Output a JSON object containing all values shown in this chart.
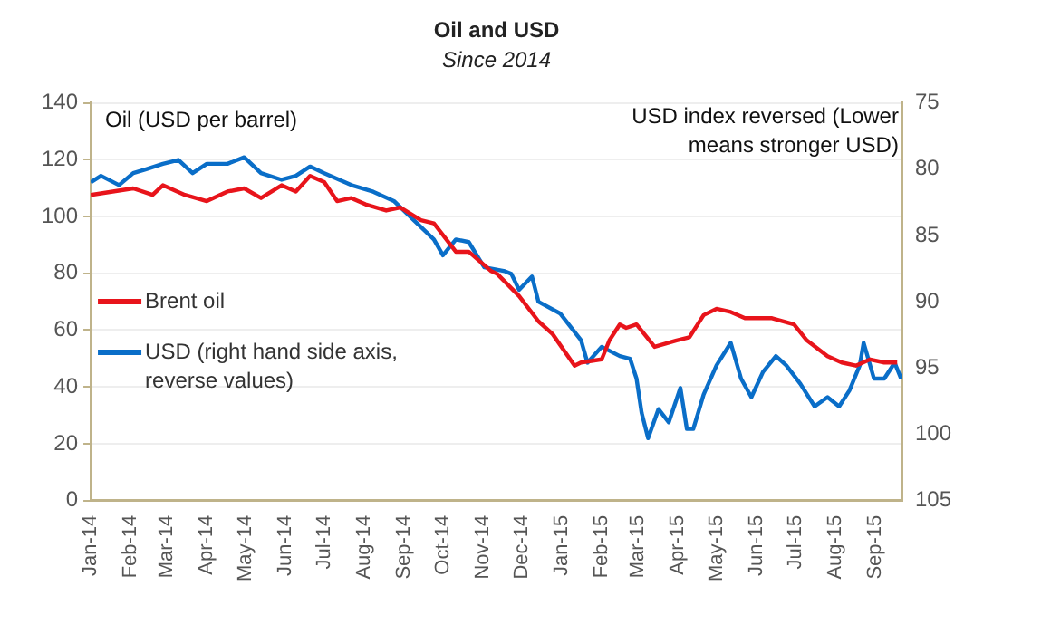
{
  "chart_data": {
    "type": "line",
    "title": "Oil and USD",
    "subtitle": "Since 2014",
    "ylabel": "Oil (USD per barrel)",
    "y2label": "USD index reversed (Lower means stronger USD)",
    "xlim": [
      "2014-01-01",
      "2015-09-22"
    ],
    "xticks": [
      {
        "value": "2014-01",
        "label": "Jan-14"
      },
      {
        "value": "2014-02",
        "label": "Feb-14"
      },
      {
        "value": "2014-03",
        "label": "Mar-14"
      },
      {
        "value": "2014-04",
        "label": "Apr-14"
      },
      {
        "value": "2014-05",
        "label": "May-14"
      },
      {
        "value": "2014-06",
        "label": "Jun-14"
      },
      {
        "value": "2014-07",
        "label": "Jul-14"
      },
      {
        "value": "2014-08",
        "label": "Aug-14"
      },
      {
        "value": "2014-09",
        "label": "Sep-14"
      },
      {
        "value": "2014-10",
        "label": "Oct-14"
      },
      {
        "value": "2014-11",
        "label": "Nov-14"
      },
      {
        "value": "2014-12",
        "label": "Dec-14"
      },
      {
        "value": "2015-01",
        "label": "Jan-15"
      },
      {
        "value": "2015-02",
        "label": "Feb-15"
      },
      {
        "value": "2015-03",
        "label": "Mar-15"
      },
      {
        "value": "2015-04",
        "label": "Apr-15"
      },
      {
        "value": "2015-05",
        "label": "May-15"
      },
      {
        "value": "2015-06",
        "label": "Jun-15"
      },
      {
        "value": "2015-07",
        "label": "Jul-15"
      },
      {
        "value": "2015-08",
        "label": "Aug-15"
      },
      {
        "value": "2015-09",
        "label": "Sep-15"
      }
    ],
    "ylim": [
      0,
      140
    ],
    "yticks": [
      0,
      20,
      40,
      60,
      80,
      100,
      120,
      140
    ],
    "y2lim": [
      105,
      75
    ],
    "y2ticks": [
      75,
      80,
      85,
      90,
      95,
      100,
      105
    ],
    "grid": "y",
    "legend": "left",
    "line_style": "solid",
    "marker": "none",
    "series": [
      {
        "name": "Brent oil",
        "color": "#e8141b",
        "x": [
          "2014-01-01",
          "2014-02-03",
          "2014-02-18",
          "2014-02-26",
          "2014-03-15",
          "2014-04-01",
          "2014-04-17",
          "2014-04-30",
          "2014-05-13",
          "2014-05-29",
          "2014-06-09",
          "2014-06-20",
          "2014-07-01",
          "2014-07-11",
          "2014-07-22",
          "2014-08-02",
          "2014-08-18",
          "2014-08-29",
          "2014-09-14",
          "2014-09-24",
          "2014-10-11",
          "2014-10-21",
          "2014-11-07",
          "2014-11-12",
          "2014-11-29",
          "2014-12-14",
          "2014-12-25",
          "2015-01-11",
          "2015-01-16",
          "2015-02-01",
          "2015-02-07",
          "2015-02-15",
          "2015-02-20",
          "2015-02-28",
          "2015-03-14",
          "2015-03-31",
          "2015-04-10",
          "2015-04-21",
          "2015-05-01",
          "2015-05-12",
          "2015-05-23",
          "2015-06-13",
          "2015-06-30",
          "2015-07-10",
          "2015-07-26",
          "2015-08-06",
          "2015-08-17",
          "2015-08-28",
          "2015-09-08",
          "2015-09-18"
        ],
        "values": [
          107.6,
          109.9,
          107.6,
          111,
          107.6,
          105.4,
          108.8,
          109.9,
          106.5,
          111,
          108.8,
          114.3,
          112.1,
          105.4,
          106.5,
          104.3,
          102.1,
          103.2,
          98.7,
          97.6,
          87.6,
          87.6,
          80.9,
          79.8,
          72,
          63.1,
          58.6,
          47.5,
          48.6,
          49.7,
          56.4,
          62,
          60.8,
          62,
          54.1,
          56.4,
          57.5,
          65.3,
          67.5,
          66.4,
          64.2,
          64.2,
          62,
          56.4,
          50.8,
          48.6,
          47.5,
          49.7,
          48.6,
          48.6
        ]
      },
      {
        "name": "USD (right hand side axis, reverse values)",
        "color": "#0a6ec8",
        "axis": "y2",
        "x": [
          "2014-01-01",
          "2014-01-09",
          "2014-01-23",
          "2014-02-03",
          "2014-02-13",
          "2014-02-26",
          "2014-03-10",
          "2014-03-21",
          "2014-04-01",
          "2014-04-17",
          "2014-04-30",
          "2014-05-13",
          "2014-05-29",
          "2014-06-09",
          "2014-06-20",
          "2014-07-01",
          "2014-07-22",
          "2014-08-08",
          "2014-08-24",
          "2014-09-09",
          "2014-09-24",
          "2014-10-01",
          "2014-10-11",
          "2014-10-21",
          "2014-11-02",
          "2014-11-18",
          "2014-11-23",
          "2014-11-29",
          "2014-12-09",
          "2014-12-14",
          "2014-12-31",
          "2015-01-16",
          "2015-01-21",
          "2015-02-01",
          "2015-02-15",
          "2015-02-23",
          "2015-02-28",
          "2015-03-04",
          "2015-03-09",
          "2015-03-17",
          "2015-03-25",
          "2015-04-03",
          "2015-04-08",
          "2015-04-13",
          "2015-04-21",
          "2015-05-01",
          "2015-05-12",
          "2015-05-20",
          "2015-05-28",
          "2015-06-06",
          "2015-06-16",
          "2015-06-24",
          "2015-07-05",
          "2015-07-16",
          "2015-07-26",
          "2015-08-04",
          "2015-08-12",
          "2015-08-20",
          "2015-08-23",
          "2015-08-31",
          "2015-09-08",
          "2015-09-16",
          "2015-09-21"
        ],
        "values": [
          81.0,
          80.5,
          81.2,
          80.3,
          80.0,
          79.6,
          79.3,
          80.3,
          79.6,
          79.6,
          79.1,
          80.3,
          80.8,
          80.5,
          79.8,
          80.3,
          81.2,
          81.7,
          82.4,
          83.9,
          85.3,
          86.5,
          85.3,
          85.5,
          87.4,
          87.7,
          87.9,
          89.1,
          88.1,
          90.0,
          90.9,
          92.9,
          94.6,
          93.4,
          94.1,
          94.3,
          95.8,
          98.4,
          100.3,
          98.1,
          99.1,
          96.5,
          99.6,
          99.6,
          97.0,
          94.8,
          93.1,
          95.8,
          97.2,
          95.3,
          94.1,
          94.8,
          96.2,
          97.9,
          97.2,
          97.9,
          96.7,
          94.8,
          93.1,
          95.8,
          95.8,
          94.6,
          95.8
        ]
      }
    ]
  }
}
